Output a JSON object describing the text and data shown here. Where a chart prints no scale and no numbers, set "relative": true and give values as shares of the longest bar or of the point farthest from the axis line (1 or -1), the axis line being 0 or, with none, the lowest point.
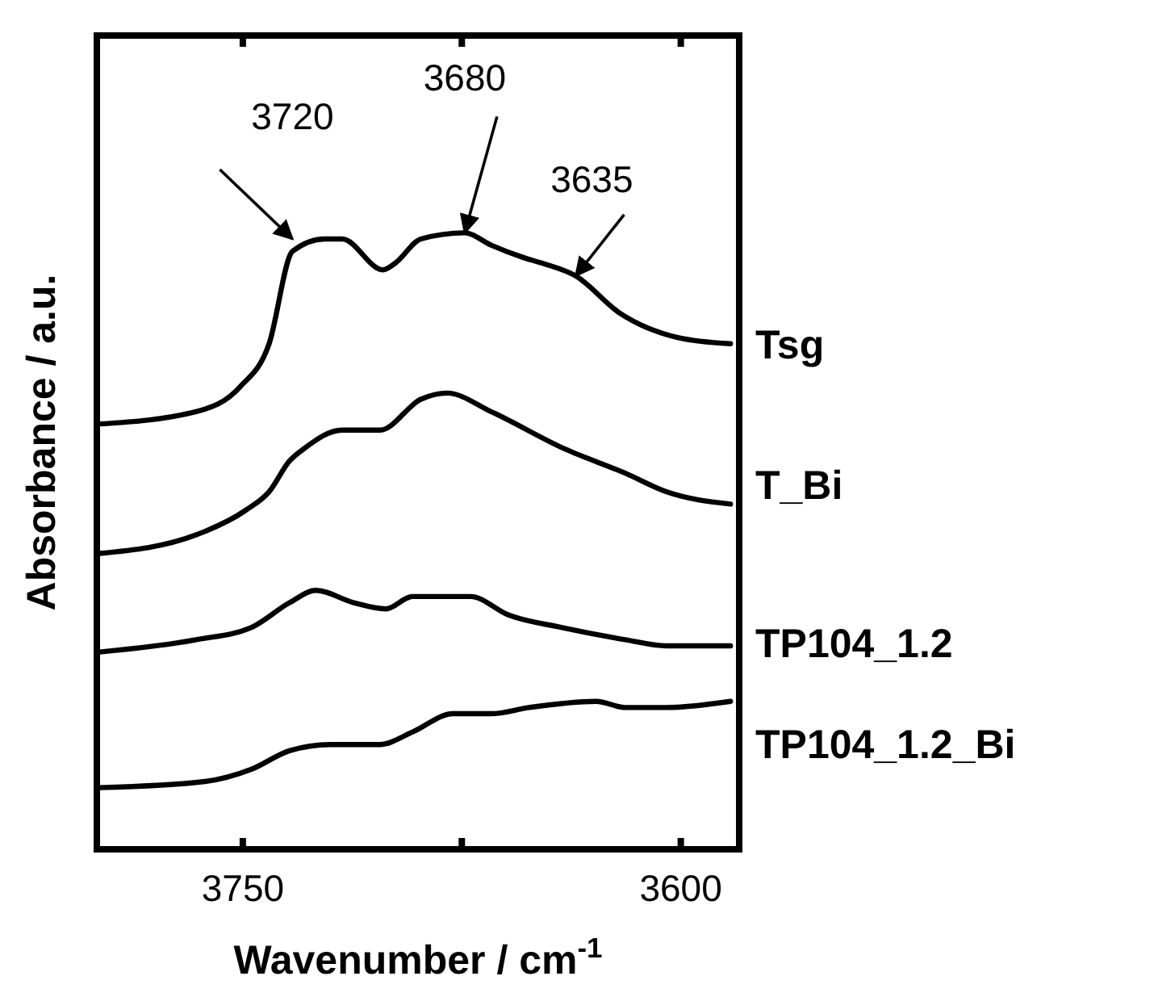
{
  "chart_data": {
    "type": "line",
    "relative": true,
    "xlabel": "Wavenumber / cm$^{-1}$",
    "ylabel": "Absorbance / a.u.",
    "xlim": [
      3800,
      3580
    ],
    "xticks": [
      3750,
      {
        "value": 3675,
        "label": null
      },
      3600
    ],
    "legend": false,
    "grid": false,
    "marker": "none",
    "line_style": "solid",
    "series": [
      {
        "name": "Tsg",
        "color": "#000000",
        "x": [
          3799,
          3766,
          3751,
          3741,
          3733,
          3722,
          3716,
          3702,
          3698,
          3689,
          3674,
          3665,
          3654,
          3647,
          3636,
          3621,
          3601,
          3583
        ],
        "values": [
          0.69,
          0.71,
          0.75,
          0.82,
          0.97,
          0.99,
          0.99,
          0.94,
          0.95,
          0.99,
          1,
          0.98,
          0.96,
          0.95,
          0.93,
          0.87,
          0.83,
          0.82
        ]
      },
      {
        "name": "T_Bi",
        "color": "#000000",
        "x": [
          3799,
          3766,
          3749,
          3741,
          3734,
          3729,
          3716,
          3703,
          3689,
          3680,
          3665,
          3640,
          3619,
          3605,
          3583
        ],
        "values": [
          0.48,
          0.51,
          0.55,
          0.58,
          0.63,
          0.65,
          0.68,
          0.68,
          0.73,
          0.74,
          0.71,
          0.65,
          0.61,
          0.58,
          0.56
        ]
      },
      {
        "name": "TP104_1.2",
        "color": "#000000",
        "x": [
          3799,
          3766,
          3747,
          3734,
          3725,
          3712,
          3701,
          3692,
          3683,
          3672,
          3659,
          3641,
          3619,
          3605,
          3583
        ],
        "values": [
          0.32,
          0.34,
          0.36,
          0.4,
          0.42,
          0.4,
          0.39,
          0.41,
          0.41,
          0.41,
          0.38,
          0.36,
          0.34,
          0.33,
          0.33
        ]
      },
      {
        "name": "TP104_1.2_Bi",
        "color": "#000000",
        "x": [
          3799,
          3763,
          3747,
          3734,
          3720,
          3703,
          3692,
          3678,
          3665,
          3652,
          3629,
          3619,
          3605,
          3583
        ],
        "values": [
          0.1,
          0.11,
          0.13,
          0.16,
          0.17,
          0.17,
          0.19,
          0.22,
          0.22,
          0.23,
          0.24,
          0.23,
          0.23,
          0.24
        ]
      }
    ],
    "annotations": [
      {
        "text": "3720",
        "x": 3733,
        "y": 0.99
      },
      {
        "text": "3680",
        "x": 3674,
        "y": 1
      },
      {
        "text": "3635",
        "x": 3636,
        "y": 0.93
      }
    ]
  }
}
